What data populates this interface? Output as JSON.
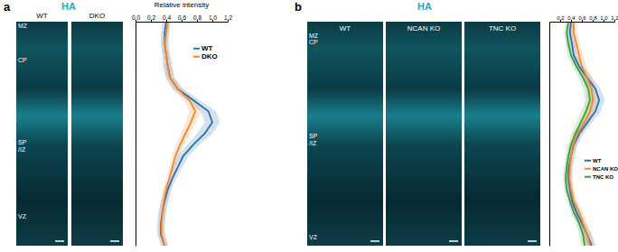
{
  "chart_data": [
    {
      "label": "a",
      "type": "line",
      "orientation": "horizontal",
      "title": "HA",
      "panels": [
        "WT",
        "DKO"
      ],
      "ylabel": "Relative intensity",
      "ylim": [
        0,
        1.2
      ],
      "yticks": [
        {
          "value": 0,
          "label": "0.0"
        },
        0.2,
        0.4,
        0.6,
        0.8,
        {
          "value": 1,
          "label": "1.0"
        },
        1.2
      ],
      "xlim": [
        0,
        1
      ],
      "tick_labels": "y",
      "legend": "upper right",
      "x": [
        0,
        0.05,
        0.1,
        0.15,
        0.2,
        0.25,
        0.3,
        0.35,
        0.4,
        0.45,
        0.5,
        0.55,
        0.6,
        0.65,
        0.7,
        0.75,
        0.8,
        0.85,
        0.9,
        0.95,
        1
      ],
      "series": [
        {
          "name": "WT",
          "color": "#2a6fb5",
          "values": [
            0.4,
            0.38,
            0.38,
            0.4,
            0.42,
            0.45,
            0.55,
            0.75,
            0.95,
            1.0,
            0.9,
            0.75,
            0.62,
            0.55,
            0.48,
            0.42,
            0.38,
            0.35,
            0.33,
            0.33,
            0.38
          ],
          "errors": [
            0.05,
            0.05,
            0.05,
            0.05,
            0.06,
            0.06,
            0.07,
            0.08,
            0.1,
            0.1,
            0.1,
            0.08,
            0.07,
            0.06,
            0.05,
            0.05,
            0.05,
            0.05,
            0.05,
            0.05,
            0.05
          ]
        },
        {
          "name": "DKO",
          "color": "#f5862b",
          "values": [
            0.42,
            0.4,
            0.38,
            0.4,
            0.42,
            0.45,
            0.55,
            0.7,
            0.78,
            0.72,
            0.65,
            0.58,
            0.52,
            0.48,
            0.44,
            0.4,
            0.37,
            0.35,
            0.34,
            0.34,
            0.38
          ],
          "errors": [
            0.04,
            0.04,
            0.04,
            0.04,
            0.05,
            0.05,
            0.06,
            0.07,
            0.08,
            0.07,
            0.06,
            0.05,
            0.05,
            0.04,
            0.04,
            0.04,
            0.04,
            0.04,
            0.04,
            0.04,
            0.04
          ]
        }
      ],
      "annotations": [
        {
          "text": "MZ",
          "x": 0.02
        },
        {
          "text": "CP",
          "x": 0.18
        },
        {
          "text": "SP\n/IZ",
          "x": 0.55
        },
        {
          "text": "VZ",
          "x": 0.88
        }
      ]
    },
    {
      "label": "b",
      "type": "line",
      "orientation": "horizontal",
      "title": "HA",
      "panels": [
        "WT",
        "NCAN KO",
        "TNC KO"
      ],
      "ylim": [
        0,
        1.2
      ],
      "yticks": [
        0.2,
        0.4,
        0.6,
        0.8,
        {
          "value": 1,
          "label": "1.0"
        },
        1.2
      ],
      "xlim": [
        0,
        1
      ],
      "tick_labels": "y",
      "legend": "lower right",
      "x": [
        0,
        0.05,
        0.1,
        0.15,
        0.2,
        0.25,
        0.3,
        0.35,
        0.4,
        0.45,
        0.5,
        0.55,
        0.6,
        0.65,
        0.7,
        0.75,
        0.8,
        0.85,
        0.9,
        0.95,
        1
      ],
      "series": [
        {
          "name": "WT",
          "color": "#2a6fb5",
          "values": [
            0.4,
            0.38,
            0.42,
            0.45,
            0.55,
            0.7,
            0.85,
            0.92,
            0.85,
            0.7,
            0.55,
            0.45,
            0.4,
            0.36,
            0.35,
            0.38,
            0.42,
            0.5,
            0.6,
            0.7,
            0.78
          ],
          "errors": [
            0.06,
            0.06,
            0.06,
            0.07,
            0.08,
            0.09,
            0.1,
            0.1,
            0.1,
            0.09,
            0.08,
            0.07,
            0.06,
            0.06,
            0.06,
            0.06,
            0.06,
            0.07,
            0.07,
            0.08,
            0.08
          ]
        },
        {
          "name": "NCAN KO",
          "color": "#f5862b",
          "values": [
            0.45,
            0.45,
            0.5,
            0.55,
            0.6,
            0.7,
            0.78,
            0.8,
            0.75,
            0.65,
            0.52,
            0.44,
            0.4,
            0.38,
            0.37,
            0.4,
            0.45,
            0.55,
            0.62,
            0.7,
            0.75
          ],
          "errors": [
            0.06,
            0.06,
            0.07,
            0.07,
            0.08,
            0.09,
            0.1,
            0.1,
            0.1,
            0.09,
            0.08,
            0.07,
            0.06,
            0.06,
            0.06,
            0.06,
            0.06,
            0.07,
            0.07,
            0.08,
            0.08
          ]
        },
        {
          "name": "TNC KO",
          "color": "#3aa03a",
          "values": [
            0.35,
            0.32,
            0.35,
            0.4,
            0.5,
            0.62,
            0.72,
            0.75,
            0.68,
            0.58,
            0.48,
            0.4,
            0.35,
            0.32,
            0.3,
            0.32,
            0.38,
            0.45,
            0.55,
            0.62,
            0.65
          ],
          "errors": [
            0.05,
            0.05,
            0.05,
            0.06,
            0.07,
            0.08,
            0.09,
            0.09,
            0.09,
            0.08,
            0.07,
            0.06,
            0.05,
            0.05,
            0.05,
            0.05,
            0.05,
            0.06,
            0.06,
            0.07,
            0.07
          ]
        }
      ],
      "annotations": [
        {
          "text": "MZ",
          "x": 0.02
        },
        {
          "text": "CP",
          "x": 0.1
        },
        {
          "text": "SP\n/IZ",
          "x": 0.52
        },
        {
          "text": "VZ",
          "x": 0.97
        }
      ]
    }
  ]
}
